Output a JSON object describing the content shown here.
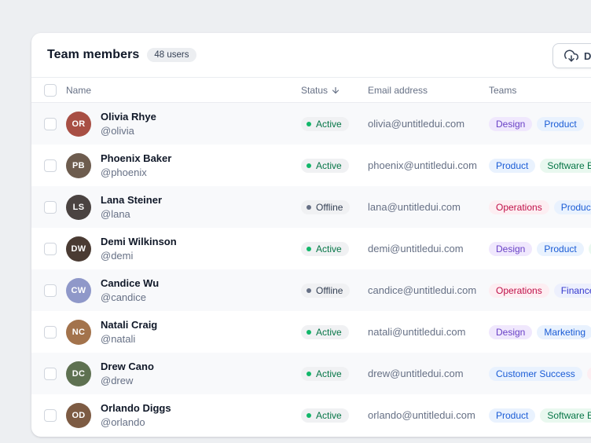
{
  "header": {
    "title": "Team members",
    "users_badge": "48 users",
    "download_label": "Download"
  },
  "table": {
    "columns": {
      "name": "Name",
      "status": "Status",
      "email": "Email address",
      "teams": "Teams"
    },
    "rows": [
      {
        "name": "Olivia Rhye",
        "handle": "@olivia",
        "initials": "OR",
        "avatar_color": "#a84f44",
        "status": "Active",
        "status_type": "active",
        "email": "olivia@untitledui.com",
        "teams": [
          {
            "label": "Design",
            "color": "purple"
          },
          {
            "label": "Product",
            "color": "blue"
          }
        ]
      },
      {
        "name": "Phoenix Baker",
        "handle": "@phoenix",
        "initials": "PB",
        "avatar_color": "#6d5c4e",
        "status": "Active",
        "status_type": "active",
        "email": "phoenix@untitledui.com",
        "teams": [
          {
            "label": "Product",
            "color": "blue"
          },
          {
            "label": "Software Engineering",
            "color": "green"
          }
        ]
      },
      {
        "name": "Lana Steiner",
        "handle": "@lana",
        "initials": "LS",
        "avatar_color": "#4a4341",
        "status": "Offline",
        "status_type": "offline",
        "email": "lana@untitledui.com",
        "teams": [
          {
            "label": "Operations",
            "color": "rose"
          },
          {
            "label": "Product",
            "color": "blue"
          }
        ]
      },
      {
        "name": "Demi Wilkinson",
        "handle": "@demi",
        "initials": "DW",
        "avatar_color": "#4a3b33",
        "status": "Active",
        "status_type": "active",
        "email": "demi@untitledui.com",
        "teams": [
          {
            "label": "Design",
            "color": "purple"
          },
          {
            "label": "Product",
            "color": "blue"
          },
          {
            "label": "Software Engineering",
            "color": "green"
          }
        ]
      },
      {
        "name": "Candice Wu",
        "handle": "@candice",
        "initials": "CW",
        "avatar_color": "#8f98c9",
        "status": "Offline",
        "status_type": "offline",
        "email": "candice@untitledui.com",
        "teams": [
          {
            "label": "Operations",
            "color": "rose"
          },
          {
            "label": "Finance",
            "color": "indigo"
          }
        ]
      },
      {
        "name": "Natali Craig",
        "handle": "@natali",
        "initials": "NC",
        "avatar_color": "#a3734c",
        "status": "Active",
        "status_type": "active",
        "email": "natali@untitledui.com",
        "teams": [
          {
            "label": "Design",
            "color": "purple"
          },
          {
            "label": "Marketing",
            "color": "blue"
          }
        ]
      },
      {
        "name": "Drew Cano",
        "handle": "@drew",
        "initials": "DC",
        "avatar_color": "#5e7151",
        "status": "Active",
        "status_type": "active",
        "email": "drew@untitledui.com",
        "teams": [
          {
            "label": "Customer Success",
            "color": "blue"
          },
          {
            "label": "Operations",
            "color": "rose"
          }
        ]
      },
      {
        "name": "Orlando Diggs",
        "handle": "@orlando",
        "initials": "OD",
        "avatar_color": "#7d5b43",
        "status": "Active",
        "status_type": "active",
        "email": "orlando@untitledui.com",
        "teams": [
          {
            "label": "Product",
            "color": "blue"
          },
          {
            "label": "Software Engineering",
            "color": "green"
          }
        ]
      }
    ]
  },
  "status_colors": {
    "active": {
      "dot": "#12b76a",
      "text": "#067647"
    },
    "offline": {
      "dot": "#667085",
      "text": "#344054"
    }
  },
  "tag_palette": {
    "purple": {
      "bg": "#f0e8fd",
      "text": "#6941c6"
    },
    "blue": {
      "bg": "#e9f2fe",
      "text": "#1a5cd6"
    },
    "green": {
      "bg": "#e9f8ef",
      "text": "#067647"
    },
    "rose": {
      "bg": "#fdeef2",
      "text": "#c01048"
    },
    "indigo": {
      "bg": "#edf0fd",
      "text": "#3538cd"
    }
  }
}
